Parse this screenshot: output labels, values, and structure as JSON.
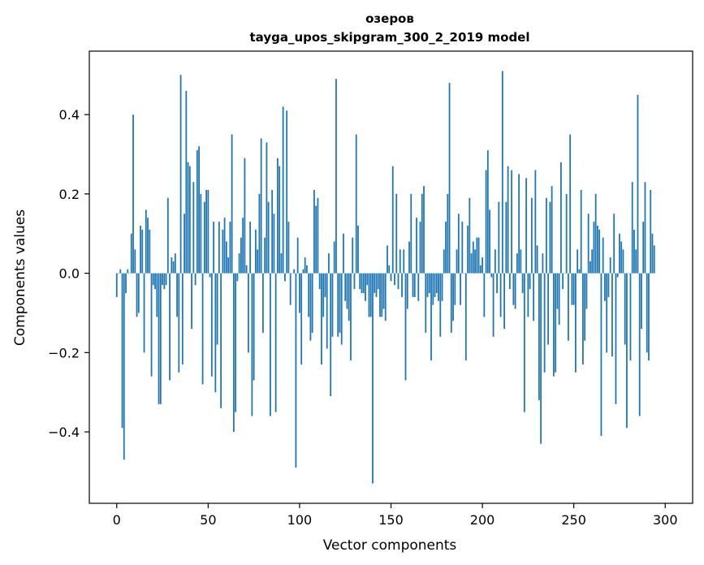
{
  "chart_data": {
    "type": "bar",
    "title": "озеров",
    "subtitle": "tayga_upos_skipgram_300_2_2019 model",
    "xlabel": "Vector components",
    "ylabel": "Components values",
    "xlim": [
      -15,
      315
    ],
    "ylim": [
      -0.58,
      0.56
    ],
    "xticks": [
      0,
      50,
      100,
      150,
      200,
      250,
      300
    ],
    "xtick_labels": [
      "0",
      "50",
      "100",
      "150",
      "200",
      "250",
      "300"
    ],
    "yticks": [
      -0.4,
      -0.2,
      0.0,
      0.2,
      0.4
    ],
    "ytick_labels": [
      "−0.4",
      "−0.2",
      "0.0",
      "0.2",
      "0.4"
    ],
    "bar_color": "#1f77b4",
    "values": [
      -0.06,
      0.0,
      0.01,
      -0.39,
      -0.47,
      -0.05,
      0.01,
      0.0,
      0.1,
      0.4,
      0.06,
      -0.11,
      -0.1,
      0.12,
      0.11,
      -0.2,
      0.16,
      0.14,
      0.11,
      -0.26,
      -0.03,
      -0.04,
      -0.11,
      -0.33,
      -0.33,
      -0.03,
      -0.04,
      -0.03,
      0.19,
      -0.27,
      0.04,
      0.03,
      0.05,
      -0.11,
      -0.25,
      0.5,
      -0.23,
      0.15,
      0.46,
      0.28,
      0.27,
      -0.14,
      0.23,
      -0.03,
      0.31,
      0.32,
      0.2,
      -0.28,
      0.18,
      0.21,
      0.21,
      -0.01,
      -0.26,
      0.13,
      -0.3,
      -0.18,
      0.13,
      -0.34,
      0.11,
      0.14,
      0.08,
      0.04,
      0.13,
      0.35,
      -0.4,
      -0.35,
      -0.02,
      0.05,
      0.09,
      0.14,
      0.29,
      0.02,
      -0.2,
      0.13,
      -0.36,
      -0.27,
      0.11,
      0.06,
      0.2,
      0.34,
      -0.15,
      0.09,
      0.33,
      0.18,
      -0.36,
      0.21,
      0.15,
      -0.35,
      0.29,
      0.27,
      0.05,
      0.42,
      -0.02,
      0.41,
      0.13,
      -0.08,
      0.0,
      0.01,
      -0.49,
      0.09,
      -0.1,
      -0.23,
      0.01,
      0.04,
      0.02,
      -0.11,
      -0.17,
      -0.15,
      0.21,
      0.17,
      0.19,
      -0.04,
      -0.23,
      -0.11,
      -0.06,
      -0.19,
      0.05,
      -0.31,
      -0.16,
      0.08,
      0.49,
      -0.16,
      -0.15,
      -0.18,
      0.1,
      -0.07,
      -0.09,
      -0.12,
      -0.22,
      0.09,
      -0.04,
      0.35,
      0.12,
      -0.04,
      -0.05,
      -0.05,
      -0.07,
      -0.03,
      -0.11,
      -0.11,
      -0.53,
      -0.05,
      -0.06,
      -0.04,
      -0.11,
      -0.11,
      -0.09,
      -0.12,
      0.07,
      0.02,
      -0.02,
      0.27,
      -0.03,
      0.2,
      -0.04,
      0.06,
      -0.06,
      0.06,
      -0.27,
      -0.09,
      0.08,
      0.2,
      -0.06,
      -0.06,
      0.14,
      -0.07,
      0.13,
      0.2,
      0.22,
      -0.15,
      -0.06,
      -0.05,
      -0.22,
      -0.08,
      -0.06,
      -0.05,
      -0.07,
      -0.16,
      -0.07,
      0.06,
      0.13,
      0.2,
      0.48,
      -0.15,
      -0.12,
      -0.08,
      0.06,
      0.15,
      -0.08,
      0.13,
      0.0,
      -0.22,
      0.12,
      0.19,
      0.05,
      0.08,
      0.06,
      0.09,
      0.09,
      0.02,
      0.04,
      -0.11,
      0.26,
      0.31,
      0.16,
      -0.01,
      -0.16,
      0.06,
      -0.05,
      0.18,
      -0.11,
      0.51,
      -0.14,
      0.18,
      0.27,
      -0.04,
      0.26,
      -0.08,
      -0.09,
      0.05,
      0.25,
      0.06,
      -0.05,
      -0.35,
      0.24,
      -0.11,
      -0.04,
      0.19,
      -0.12,
      0.26,
      0.07,
      -0.32,
      -0.43,
      0.05,
      -0.25,
      0.19,
      -0.18,
      0.18,
      0.22,
      -0.26,
      -0.25,
      -0.09,
      -0.13,
      0.28,
      -0.04,
      0.0,
      0.2,
      -0.17,
      0.35,
      -0.08,
      -0.08,
      -0.25,
      0.06,
      0.01,
      0.21,
      -0.23,
      -0.17,
      -0.09,
      0.15,
      0.03,
      0.06,
      0.13,
      0.2,
      0.12,
      0.11,
      -0.41,
      0.09,
      -0.07,
      -0.2,
      -0.06,
      0.04,
      -0.21,
      0.15,
      -0.33,
      -0.01,
      0.1,
      0.08,
      0.06,
      -0.18,
      -0.39,
      0.0,
      -0.22,
      0.23,
      0.11,
      0.06,
      0.45,
      -0.36,
      -0.14,
      0.13,
      0.23,
      -0.2,
      -0.22,
      0.21,
      0.1,
      0.07
    ]
  }
}
